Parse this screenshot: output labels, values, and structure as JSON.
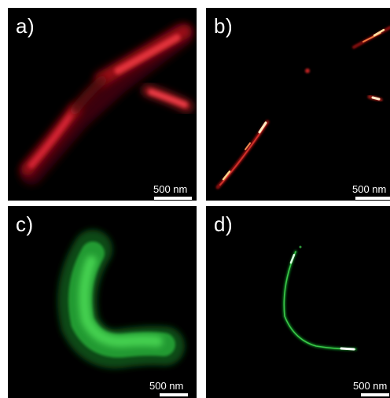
{
  "figure": {
    "panels": [
      {
        "id": "a",
        "label": "a)",
        "scale_bar": "500 nm",
        "colormap": "red"
      },
      {
        "id": "b",
        "label": "b)",
        "scale_bar": "500 nm",
        "colormap": "red-hot"
      },
      {
        "id": "c",
        "label": "c)",
        "scale_bar": "500 nm",
        "colormap": "green"
      },
      {
        "id": "d",
        "label": "d)",
        "scale_bar": "500 nm",
        "colormap": "green-hot"
      }
    ]
  },
  "colors": {
    "background": "#000000",
    "red": "#d8262e",
    "hot_core": "#fff2d0",
    "green": "#2fc03f",
    "text": "#ffffff"
  }
}
